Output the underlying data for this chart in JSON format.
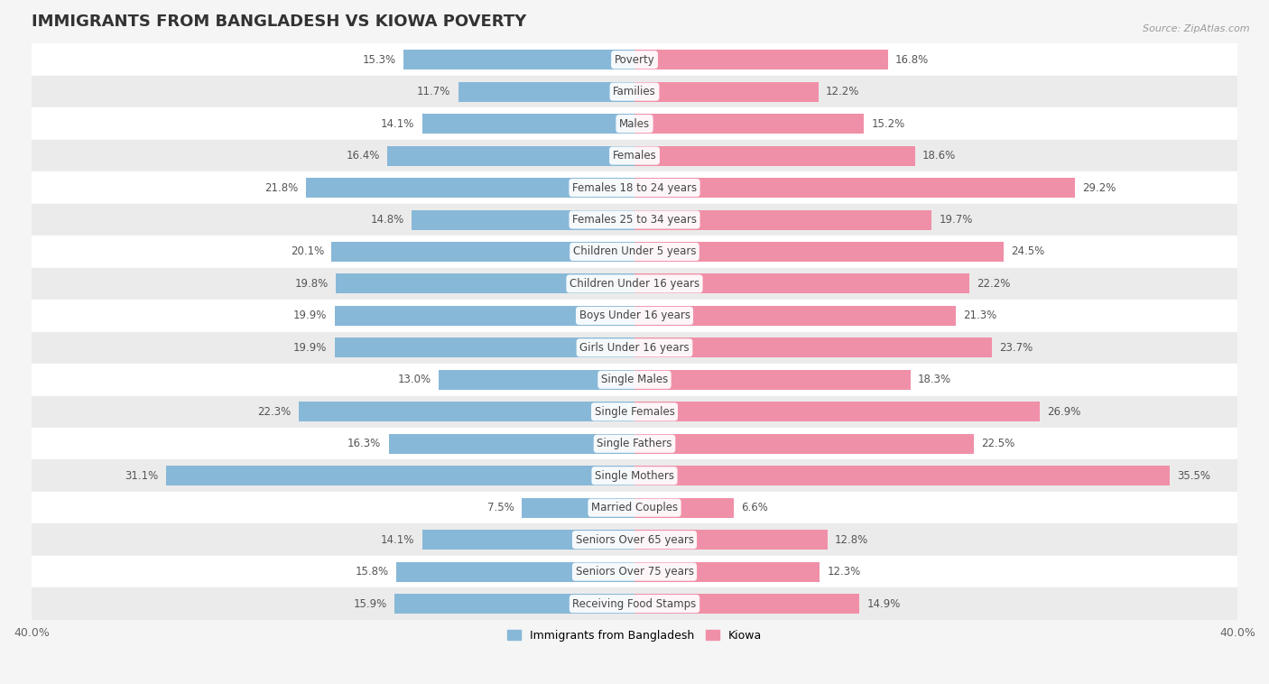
{
  "title": "IMMIGRANTS FROM BANGLADESH VS KIOWA POVERTY",
  "source": "Source: ZipAtlas.com",
  "categories": [
    "Poverty",
    "Families",
    "Males",
    "Females",
    "Females 18 to 24 years",
    "Females 25 to 34 years",
    "Children Under 5 years",
    "Children Under 16 years",
    "Boys Under 16 years",
    "Girls Under 16 years",
    "Single Males",
    "Single Females",
    "Single Fathers",
    "Single Mothers",
    "Married Couples",
    "Seniors Over 65 years",
    "Seniors Over 75 years",
    "Receiving Food Stamps"
  ],
  "bangladesh_values": [
    15.3,
    11.7,
    14.1,
    16.4,
    21.8,
    14.8,
    20.1,
    19.8,
    19.9,
    19.9,
    13.0,
    22.3,
    16.3,
    31.1,
    7.5,
    14.1,
    15.8,
    15.9
  ],
  "kiowa_values": [
    16.8,
    12.2,
    15.2,
    18.6,
    29.2,
    19.7,
    24.5,
    22.2,
    21.3,
    23.7,
    18.3,
    26.9,
    22.5,
    35.5,
    6.6,
    12.8,
    12.3,
    14.9
  ],
  "bangladesh_color": "#88b8d8",
  "kiowa_color": "#f090a8",
  "bangladesh_label": "Immigrants from Bangladesh",
  "kiowa_label": "Kiowa",
  "xlim": 40.0,
  "bar_height": 0.62,
  "row_bg_light": "#ffffff",
  "row_bg_dark": "#ebebeb",
  "title_fontsize": 13,
  "value_fontsize": 8.5,
  "category_fontsize": 8.5,
  "fig_bg": "#f5f5f5"
}
